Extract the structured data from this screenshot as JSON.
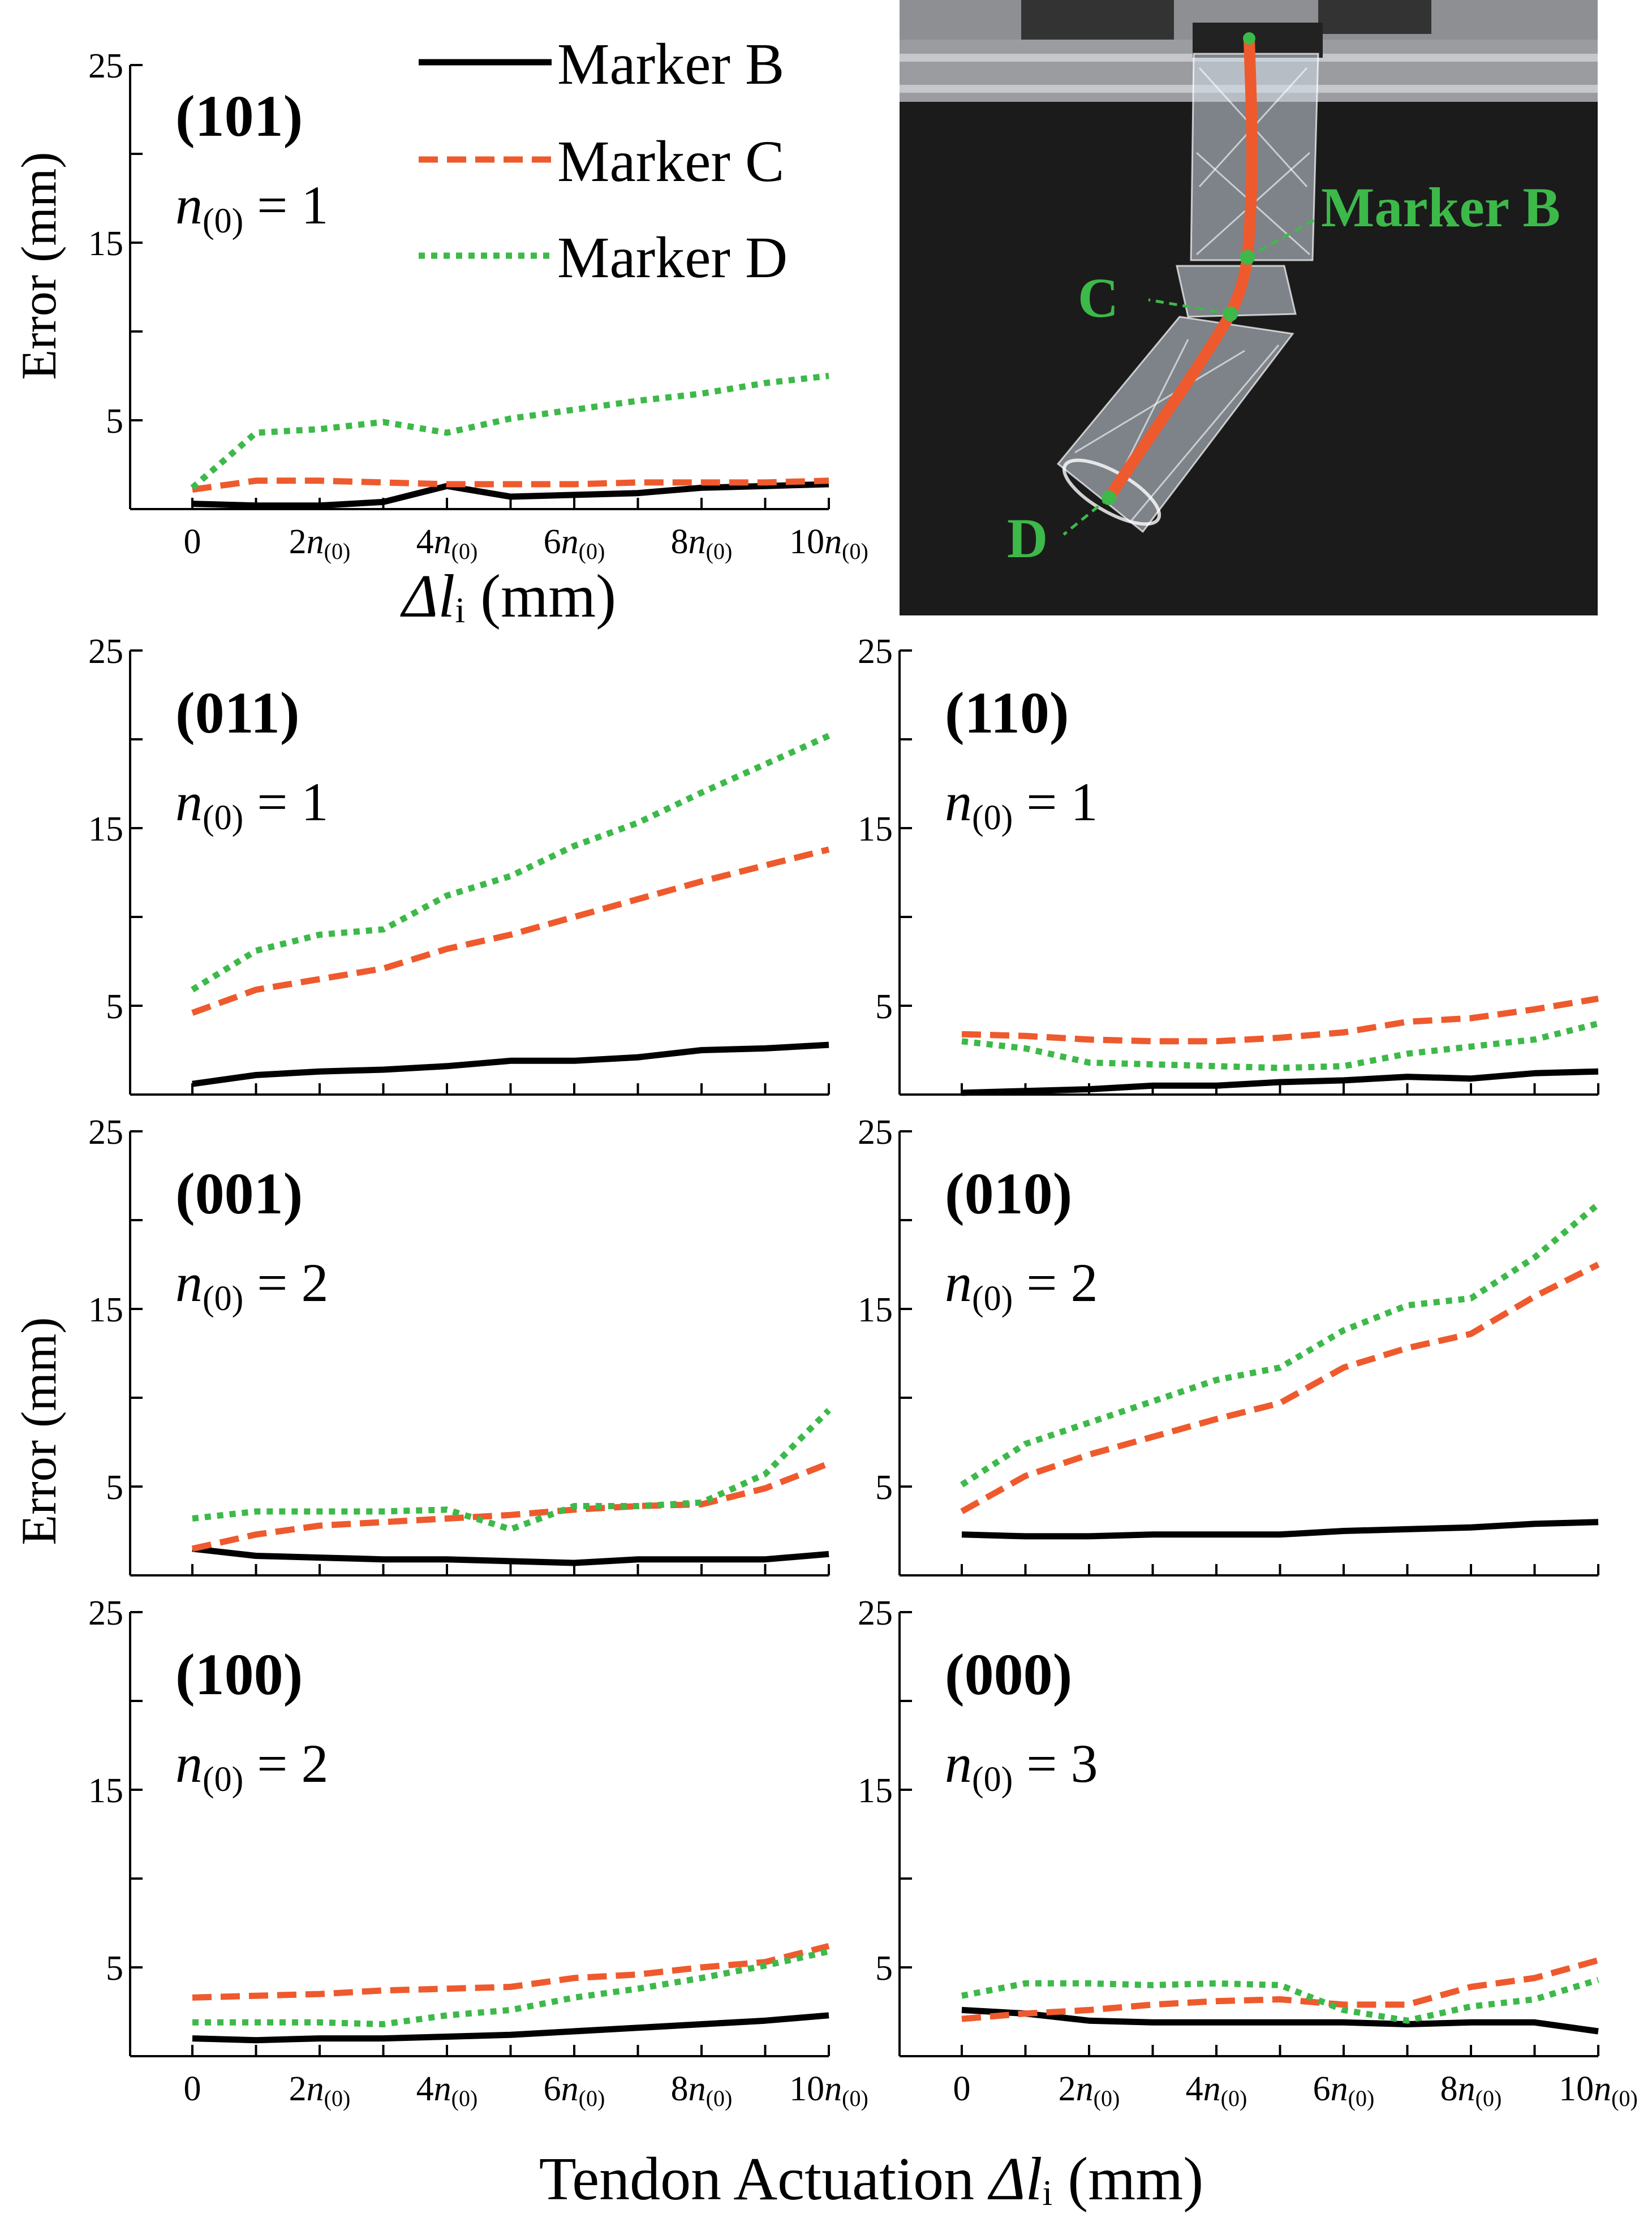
{
  "colors": {
    "markerB": "#000000",
    "markerC": "#ee5a2d",
    "markerD": "#3db94a",
    "photo_bg": "#1b1b1b"
  },
  "legend": {
    "items": [
      {
        "label": "Marker B",
        "style": "solid"
      },
      {
        "label": "Marker C",
        "style": "dashed"
      },
      {
        "label": "Marker D",
        "style": "dotted"
      }
    ]
  },
  "axis": {
    "ylabel": "Error (mm)",
    "yticks": [
      "25",
      "15",
      "5"
    ],
    "xticks": [
      {
        "num": "0",
        "sub": ""
      },
      {
        "num": "2",
        "sub": "n",
        "idx": "(0)"
      },
      {
        "num": "4",
        "sub": "n",
        "idx": "(0)"
      },
      {
        "num": "6",
        "sub": "n",
        "idx": "(0)"
      },
      {
        "num": "8",
        "sub": "n",
        "idx": "(0)"
      },
      {
        "num": "10",
        "sub": "n",
        "idx": "(0)"
      }
    ],
    "top_xlabel": {
      "sym": "Δl",
      "sub": "i",
      "unit": " (mm)"
    },
    "bottom_xlabel": {
      "prefix": "Tendon Actuation ",
      "sym": "Δl",
      "sub": "i",
      "unit": "  (mm)"
    }
  },
  "photo": {
    "labels": {
      "markerB": "Marker B",
      "c": "C",
      "d": "D"
    }
  },
  "chart_data": [
    {
      "type": "line",
      "id": "(101)",
      "n_label": {
        "sym": "n",
        "idx": "(0)",
        "val": " = 1"
      },
      "xlabel": "Δl_i (mm)",
      "ylabel": "Error (mm)",
      "ylim": [
        0,
        25
      ],
      "x": [
        0,
        1,
        2,
        3,
        4,
        5,
        6,
        7,
        8,
        9,
        10
      ],
      "series": [
        {
          "name": "Marker B",
          "values": [
            0.3,
            0.2,
            0.2,
            0.4,
            1.3,
            0.7,
            0.8,
            0.9,
            1.2,
            1.3,
            1.4
          ]
        },
        {
          "name": "Marker C",
          "values": [
            1.1,
            1.6,
            1.6,
            1.5,
            1.4,
            1.4,
            1.4,
            1.5,
            1.5,
            1.5,
            1.6
          ]
        },
        {
          "name": "Marker D",
          "values": [
            1.2,
            4.3,
            4.5,
            4.9,
            4.3,
            5.1,
            5.6,
            6.1,
            6.5,
            7.1,
            7.5
          ]
        }
      ]
    },
    {
      "type": "line",
      "id": "(011)",
      "n_label": {
        "sym": "n",
        "idx": "(0)",
        "val": " = 1"
      },
      "ylim": [
        0,
        25
      ],
      "x": [
        0,
        1,
        2,
        3,
        4,
        5,
        6,
        7,
        8,
        9,
        10
      ],
      "series": [
        {
          "name": "Marker B",
          "values": [
            0.6,
            1.1,
            1.3,
            1.4,
            1.6,
            1.9,
            1.9,
            2.1,
            2.5,
            2.6,
            2.8
          ]
        },
        {
          "name": "Marker C",
          "values": [
            4.6,
            5.9,
            6.5,
            7.1,
            8.2,
            9.0,
            10.0,
            11.0,
            12.0,
            12.9,
            13.8
          ]
        },
        {
          "name": "Marker D",
          "values": [
            5.9,
            8.1,
            9.0,
            9.3,
            11.2,
            12.3,
            14.0,
            15.3,
            17.0,
            18.6,
            20.2
          ]
        }
      ]
    },
    {
      "type": "line",
      "id": "(110)",
      "n_label": {
        "sym": "n",
        "idx": "(0)",
        "val": " = 1"
      },
      "ylim": [
        0,
        25
      ],
      "x": [
        0,
        1,
        2,
        3,
        4,
        5,
        6,
        7,
        8,
        9,
        10
      ],
      "series": [
        {
          "name": "Marker B",
          "values": [
            0.1,
            0.2,
            0.3,
            0.5,
            0.5,
            0.7,
            0.8,
            1.0,
            0.9,
            1.2,
            1.3
          ]
        },
        {
          "name": "Marker C",
          "values": [
            3.4,
            3.3,
            3.1,
            3.0,
            3.0,
            3.2,
            3.5,
            4.1,
            4.3,
            4.8,
            5.4
          ]
        },
        {
          "name": "Marker D",
          "values": [
            3.0,
            2.6,
            1.8,
            1.7,
            1.6,
            1.5,
            1.6,
            2.3,
            2.7,
            3.1,
            4.0
          ]
        }
      ]
    },
    {
      "type": "line",
      "id": "(001)",
      "n_label": {
        "sym": "n",
        "idx": "(0)",
        "val": " = 2"
      },
      "ylim": [
        0,
        25
      ],
      "x": [
        0,
        1,
        2,
        3,
        4,
        5,
        6,
        7,
        8,
        9,
        10
      ],
      "series": [
        {
          "name": "Marker B",
          "values": [
            1.5,
            1.1,
            1.0,
            0.9,
            0.9,
            0.8,
            0.7,
            0.9,
            0.9,
            0.9,
            1.2
          ]
        },
        {
          "name": "Marker C",
          "values": [
            1.5,
            2.3,
            2.8,
            3.0,
            3.2,
            3.4,
            3.7,
            3.9,
            4.0,
            4.9,
            6.3
          ]
        },
        {
          "name": "Marker D",
          "values": [
            3.2,
            3.6,
            3.6,
            3.6,
            3.7,
            2.6,
            3.9,
            3.9,
            4.1,
            5.7,
            9.3
          ]
        }
      ]
    },
    {
      "type": "line",
      "id": "(010)",
      "n_label": {
        "sym": "n",
        "idx": "(0)",
        "val": " = 2"
      },
      "ylim": [
        0,
        25
      ],
      "x": [
        0,
        1,
        2,
        3,
        4,
        5,
        6,
        7,
        8,
        9,
        10
      ],
      "series": [
        {
          "name": "Marker B",
          "values": [
            2.3,
            2.2,
            2.2,
            2.3,
            2.3,
            2.3,
            2.5,
            2.6,
            2.7,
            2.9,
            3.0
          ]
        },
        {
          "name": "Marker C",
          "values": [
            3.6,
            5.6,
            6.8,
            7.8,
            8.8,
            9.7,
            11.7,
            12.8,
            13.6,
            15.7,
            17.5
          ]
        },
        {
          "name": "Marker D",
          "values": [
            5.1,
            7.4,
            8.6,
            9.8,
            11.0,
            11.7,
            13.8,
            15.2,
            15.6,
            17.9,
            20.9
          ]
        }
      ]
    },
    {
      "type": "line",
      "id": "(100)",
      "n_label": {
        "sym": "n",
        "idx": "(0)",
        "val": " = 2"
      },
      "ylim": [
        0,
        25
      ],
      "x": [
        0,
        1,
        2,
        3,
        4,
        5,
        6,
        7,
        8,
        9,
        10
      ],
      "series": [
        {
          "name": "Marker B",
          "values": [
            1.0,
            0.9,
            1.0,
            1.0,
            1.1,
            1.2,
            1.4,
            1.6,
            1.8,
            2.0,
            2.3
          ]
        },
        {
          "name": "Marker C",
          "values": [
            3.3,
            3.4,
            3.5,
            3.7,
            3.8,
            3.9,
            4.4,
            4.6,
            5.0,
            5.3,
            6.2
          ]
        },
        {
          "name": "Marker D",
          "values": [
            1.9,
            1.9,
            1.9,
            1.8,
            2.3,
            2.6,
            3.3,
            3.8,
            4.4,
            5.1,
            5.9
          ]
        }
      ]
    },
    {
      "type": "line",
      "id": "(000)",
      "n_label": {
        "sym": "n",
        "idx": "(0)",
        "val": " = 3"
      },
      "ylim": [
        0,
        25
      ],
      "x": [
        0,
        1,
        2,
        3,
        4,
        5,
        6,
        7,
        8,
        9,
        10
      ],
      "series": [
        {
          "name": "Marker B",
          "values": [
            2.6,
            2.4,
            2.0,
            1.9,
            1.9,
            1.9,
            1.9,
            1.8,
            1.9,
            1.9,
            1.4
          ]
        },
        {
          "name": "Marker C",
          "values": [
            2.1,
            2.4,
            2.6,
            2.9,
            3.1,
            3.2,
            2.9,
            2.9,
            3.9,
            4.4,
            5.4
          ]
        },
        {
          "name": "Marker D",
          "values": [
            3.4,
            4.1,
            4.1,
            4.0,
            4.1,
            4.0,
            2.6,
            2.0,
            2.8,
            3.2,
            4.3
          ]
        }
      ]
    }
  ]
}
